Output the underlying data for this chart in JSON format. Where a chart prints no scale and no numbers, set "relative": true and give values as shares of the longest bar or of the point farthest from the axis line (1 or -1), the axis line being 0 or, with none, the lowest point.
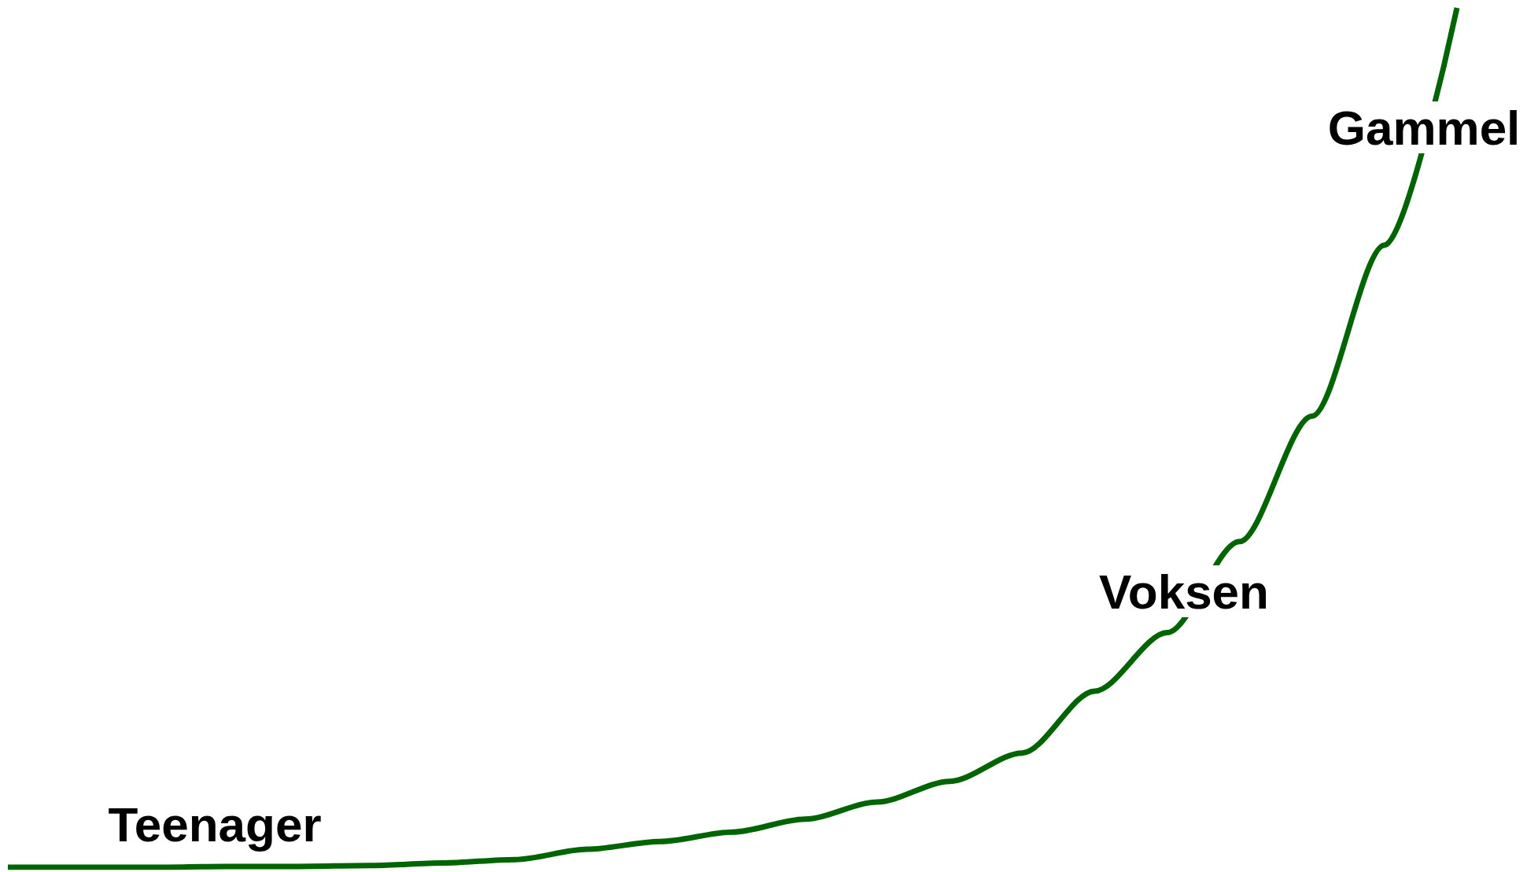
{
  "chart_data": {
    "type": "line",
    "relative": true,
    "categories": [
      null,
      null,
      null,
      null,
      null,
      null,
      null,
      null,
      null,
      null,
      null,
      null,
      null,
      null,
      null,
      null,
      null,
      null,
      null,
      null,
      null
    ],
    "series": [
      {
        "color": "#006400",
        "values": [
          0,
          0,
          0,
          0.001,
          0.001,
          0.002,
          0.005,
          0.009,
          0.021,
          0.03,
          0.041,
          0.056,
          0.076,
          0.1,
          0.133,
          0.205,
          0.273,
          0.379,
          0.525,
          0.724,
          1
        ]
      }
    ],
    "annotations": [
      "Teenager",
      "Voksen",
      "Gammel"
    ],
    "marker": "none",
    "line_style": "solid",
    "grid": false
  }
}
